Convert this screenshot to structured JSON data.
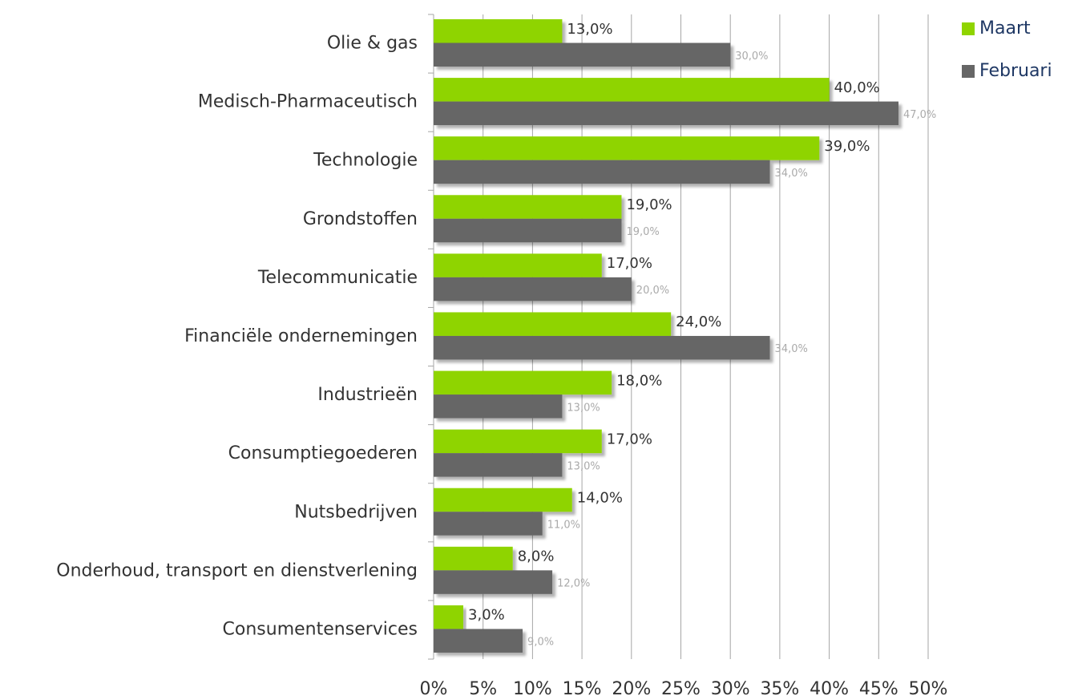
{
  "chart_data": {
    "type": "bar",
    "orientation": "horizontal",
    "categories": [
      "Olie & gas",
      "Medisch-Pharmaceutisch",
      "Technologie",
      "Grondstoffen",
      "Telecommunicatie",
      "Financiële ondernemingen",
      "Industrieën",
      "Consumptiegoederen",
      "Nutsbedrijven",
      "Onderhoud, transport en dienstverlening",
      "Consumentenservices"
    ],
    "series": [
      {
        "name": "Maart",
        "color": "#8fd400",
        "values": [
          13,
          40,
          39,
          19,
          17,
          24,
          18,
          17,
          14,
          8,
          3
        ],
        "value_labels": [
          "13,0%",
          "40,0%",
          "39,0%",
          "19,0%",
          "17,0%",
          "24,0%",
          "18,0%",
          "17,0%",
          "14,0%",
          "8,0%",
          "3,0%"
        ]
      },
      {
        "name": "Februari",
        "color": "#666666",
        "values": [
          30,
          47,
          34,
          19,
          20,
          34,
          13,
          13,
          11,
          12,
          9
        ],
        "value_labels": [
          "30,0%",
          "47,0%",
          "34,0%",
          "19,0%",
          "20,0%",
          "34,0%",
          "13,0%",
          "13,0%",
          "11,0%",
          "12,0%",
          "9,0%"
        ]
      }
    ],
    "xlim": [
      0,
      50
    ],
    "xticks": [
      {
        "value": 0,
        "label": "0%"
      },
      {
        "value": 5,
        "label": "5%"
      },
      {
        "value": 10,
        "label": "10%"
      },
      {
        "value": 15,
        "label": "15%"
      },
      {
        "value": 20,
        "label": "20%"
      },
      {
        "value": 25,
        "label": "25%"
      },
      {
        "value": 30,
        "label": "30%"
      },
      {
        "value": 35,
        "label": "35%"
      },
      {
        "value": 40,
        "label": "40%"
      },
      {
        "value": 45,
        "label": "45%"
      },
      {
        "value": 50,
        "label": "50%"
      }
    ],
    "grid": true,
    "legend": "top-right"
  }
}
